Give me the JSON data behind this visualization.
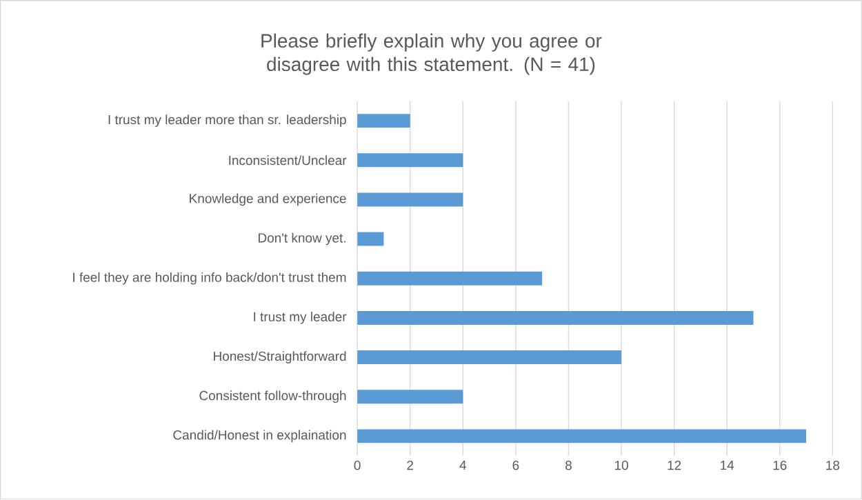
{
  "chart_data": {
    "type": "bar",
    "orientation": "horizontal",
    "title": "Please briefly explain why you agree or disagree with this statement. (N = 41)",
    "categories": [
      "I trust my leader more than sr. leadership",
      "Inconsistent/Unclear",
      "Knowledge and experience",
      "Don't know yet.",
      "I feel they are holding info back/don't trust them",
      "I trust my leader",
      "Honest/Straightforward",
      "Consistent follow-through",
      "Candid/Honest in explaination"
    ],
    "values": [
      2,
      4,
      4,
      1,
      7,
      15,
      10,
      4,
      17
    ],
    "color": "#5b9bd5",
    "xlim": [
      0,
      18
    ],
    "xticks": [
      0,
      2,
      4,
      6,
      8,
      10,
      12,
      14,
      16,
      18
    ],
    "grid": "x"
  }
}
